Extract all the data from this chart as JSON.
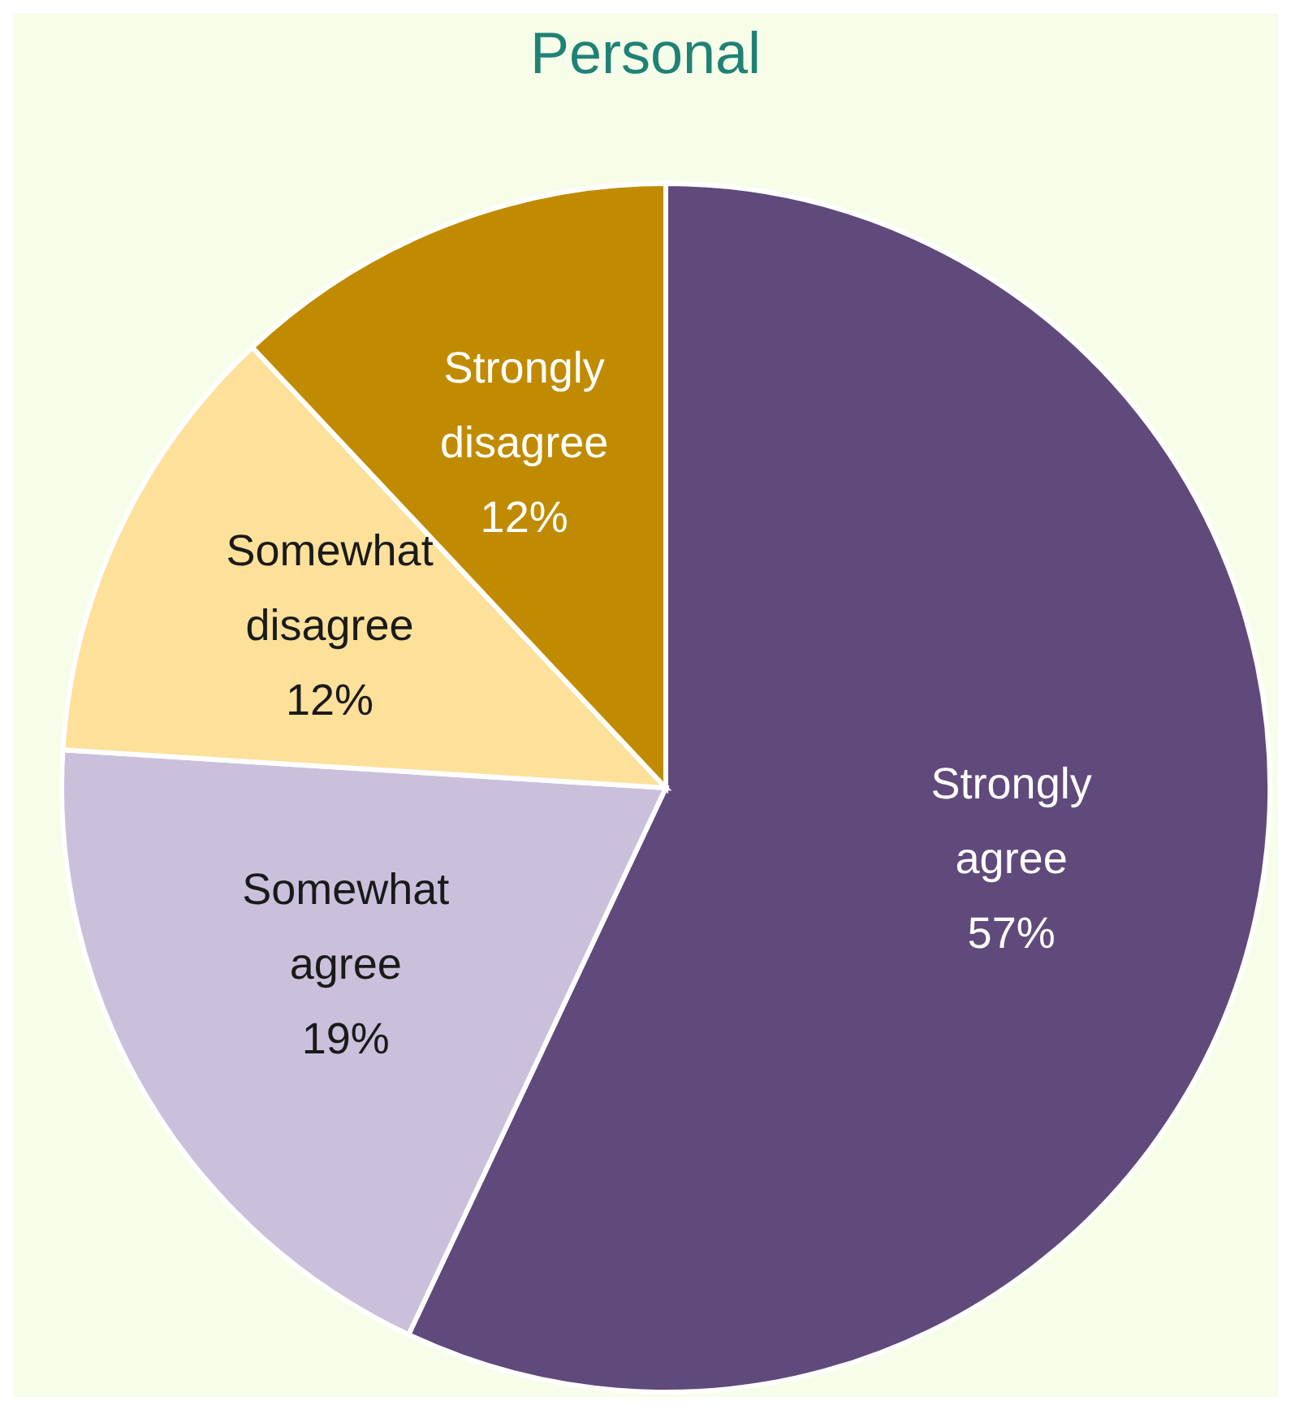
{
  "chart_data": {
    "type": "pie",
    "title": "Personal",
    "categories": [
      "Strongly agree",
      "Somewhat agree",
      "Somewhat disagree",
      "Strongly disagree"
    ],
    "values": [
      57,
      19,
      12,
      12
    ],
    "colors": [
      "#5f4a7b",
      "#cbc0dc",
      "#fde09a",
      "#c08b00"
    ],
    "value_labels": [
      "57%",
      "19%",
      "12%",
      "12%"
    ]
  }
}
